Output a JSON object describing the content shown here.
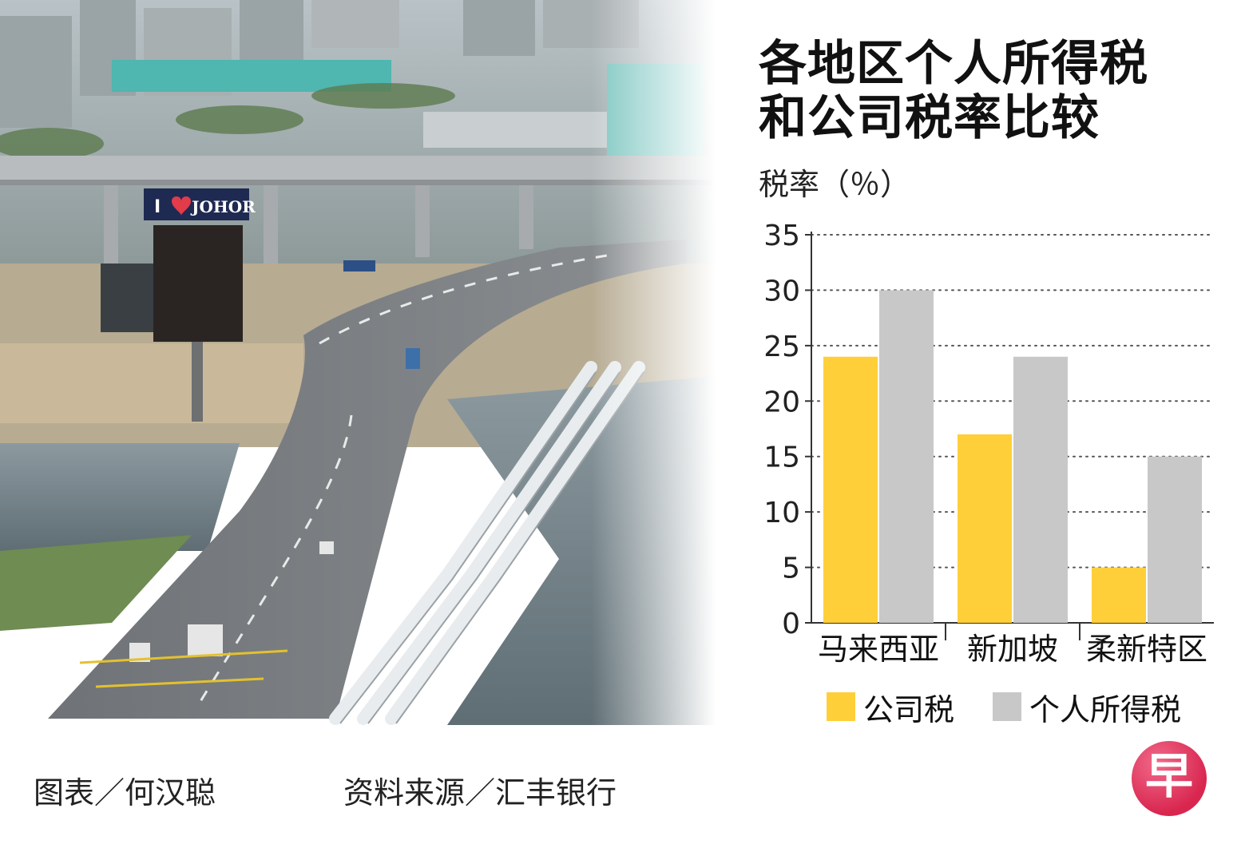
{
  "title": {
    "line1": "各地区个人所得税",
    "line2": "和公司税率比较"
  },
  "y_unit": "税率（％）",
  "credits": {
    "graphic": "图表／何汉聪",
    "source": "资料来源／汇丰银行"
  },
  "logo": {
    "char": "早",
    "color": "#d9264f"
  },
  "photo": {
    "billboard_text": "JOHOR",
    "billboard_prefix": "I"
  },
  "colors": {
    "corporate": "#ffcf3a",
    "personal": "#c8c8c8",
    "axis": "#333333",
    "grid": "#555555"
  },
  "chart_data": {
    "type": "bar",
    "categories": [
      "马来西亚",
      "新加坡",
      "柔新特区"
    ],
    "series": [
      {
        "name": "公司税",
        "values": [
          24,
          17,
          5
        ],
        "color": "#ffcf3a"
      },
      {
        "name": "个人所得税",
        "values": [
          30,
          24,
          15
        ],
        "color": "#c8c8c8"
      }
    ],
    "title": "各地区个人所得税和公司税率比较",
    "ylabel": "税率（％）",
    "ylim": [
      0,
      35
    ],
    "yticks": [
      0,
      5,
      10,
      15,
      20,
      25,
      30,
      35
    ],
    "grid": "horizontal dotted",
    "legend": "bottom"
  }
}
